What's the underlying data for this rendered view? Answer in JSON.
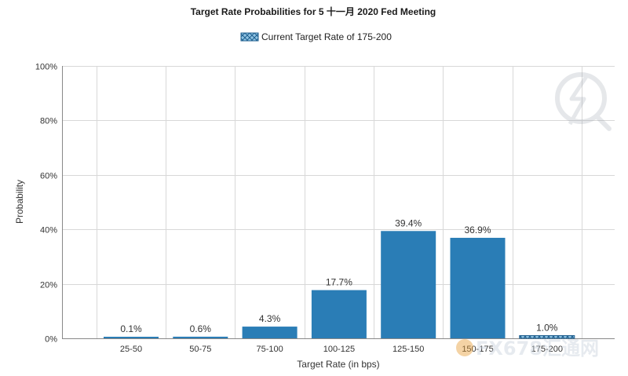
{
  "chart_data": {
    "type": "bar",
    "title": "Target Rate Probabilities for 5 十一月 2020  Fed Meeting",
    "legend": {
      "label": "Current Target Rate of 175-200",
      "position": "top-center"
    },
    "xlabel": "Target Rate (in bps)",
    "ylabel": "Probability",
    "categories": [
      "25-50",
      "50-75",
      "75-100",
      "100-125",
      "125-150",
      "150-175",
      "175-200"
    ],
    "values": [
      0.1,
      0.6,
      4.3,
      17.7,
      39.4,
      36.9,
      1.0
    ],
    "value_labels": [
      "0.1%",
      "0.6%",
      "4.3%",
      "17.7%",
      "39.4%",
      "36.9%",
      "1.0%"
    ],
    "highlight_category": "175-200",
    "ylim": [
      0,
      100
    ],
    "yticks": [
      0,
      20,
      40,
      60,
      80,
      100
    ],
    "ytick_labels": [
      "0%",
      "20%",
      "40%",
      "60%",
      "80%",
      "100%"
    ],
    "grid": true,
    "colors": {
      "bar": "#2a7db6",
      "highlight_bar": "#6cb0da",
      "highlight_pattern": "#1f5f8f"
    }
  },
  "watermark": {
    "text": "FX678汇通网"
  }
}
